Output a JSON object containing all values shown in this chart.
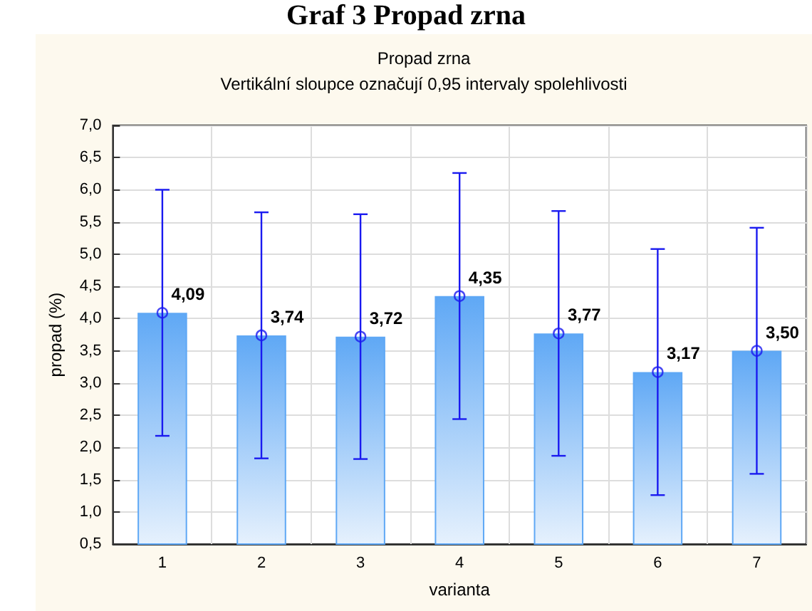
{
  "chart_data": {
    "type": "bar",
    "title": "Graf 3 Propad zrna",
    "subtitle": "Propad zrna\nVertikální sloupce označují 0,95 intervaly spolehlivosti",
    "xlabel": "varianta",
    "ylabel": "propad (%)",
    "categories": [
      "1",
      "2",
      "3",
      "4",
      "5",
      "6",
      "7"
    ],
    "series": [
      {
        "color": "#5fa8f5",
        "values": [
          4.09,
          3.74,
          3.72,
          4.35,
          3.77,
          3.17,
          3.5
        ],
        "value_labels": [
          "4,09",
          "3,74",
          "3,72",
          "4,35",
          "3,77",
          "3,17",
          "3,50"
        ],
        "errors": [
          1.91,
          1.91,
          1.9,
          1.91,
          1.9,
          1.91,
          1.91
        ]
      },
      {
        "type": "scatter",
        "color": "#1a1af0",
        "x": [
          "1",
          "2",
          "3",
          "4",
          "5",
          "6",
          "7"
        ],
        "values": [
          4.09,
          3.74,
          3.72,
          4.35,
          3.77,
          3.17,
          3.5
        ]
      }
    ],
    "ylim": [
      0.5,
      7.0
    ],
    "yticks": [
      {
        "value": 0.5,
        "label": "0,5"
      },
      {
        "value": 1.0,
        "label": "1,0"
      },
      {
        "value": 1.5,
        "label": "1,5"
      },
      {
        "value": 2.0,
        "label": "2,0"
      },
      {
        "value": 2.5,
        "label": "2,5"
      },
      {
        "value": 3.0,
        "label": "3,0"
      },
      {
        "value": 3.5,
        "label": "3,5"
      },
      {
        "value": 4.0,
        "label": "4,0"
      },
      {
        "value": 4.5,
        "label": "4,5"
      },
      {
        "value": 5.0,
        "label": "5,0"
      },
      {
        "value": 5.5,
        "label": "5,5"
      },
      {
        "value": 6.0,
        "label": "6,0"
      },
      {
        "value": 6.5,
        "label": "6,5"
      },
      {
        "value": 7.0,
        "label": "7,0"
      }
    ],
    "grid": true,
    "marker": "circle"
  }
}
